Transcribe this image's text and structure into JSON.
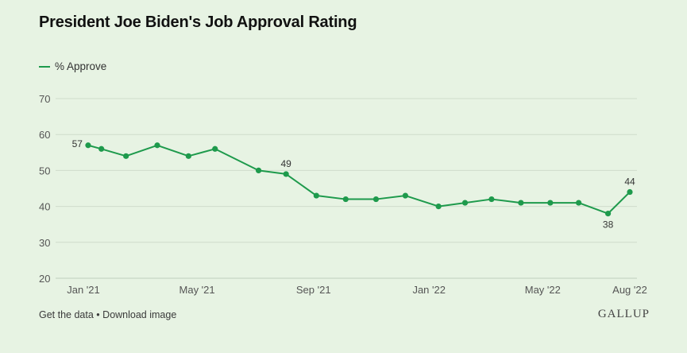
{
  "title": "President Joe Biden's Job Approval Rating",
  "legend": {
    "label": "% Approve",
    "color": "#1e9a4c"
  },
  "footer": {
    "get_data": "Get the data",
    "separator": "•",
    "download": "Download image",
    "brand": "GALLUP"
  },
  "chart_data": {
    "type": "line",
    "title": "President Joe Biden's Job Approval Rating",
    "xlabel": "",
    "ylabel": "",
    "ylim": [
      20,
      70
    ],
    "yticks": [
      20,
      30,
      40,
      50,
      60,
      70
    ],
    "xlim": [
      "2021-01-01",
      "2022-08-01"
    ],
    "xticks": [
      {
        "label": "Jan '21",
        "date": "2021-01-01"
      },
      {
        "label": "May '21",
        "date": "2021-05-01"
      },
      {
        "label": "Sep '21",
        "date": "2021-09-01"
      },
      {
        "label": "Jan '22",
        "date": "2022-01-01"
      },
      {
        "label": "May '22",
        "date": "2022-05-01"
      },
      {
        "label": "Aug '22",
        "date": "2022-08-01"
      }
    ],
    "grid": true,
    "legend_position": "top-left",
    "series": [
      {
        "name": "% Approve",
        "color": "#1e9a4c",
        "points": [
          {
            "date": "2021-01-06",
            "value": 57,
            "label": "57"
          },
          {
            "date": "2021-01-20",
            "value": 56
          },
          {
            "date": "2021-02-15",
            "value": 54
          },
          {
            "date": "2021-03-20",
            "value": 57
          },
          {
            "date": "2021-04-22",
            "value": 54
          },
          {
            "date": "2021-05-20",
            "value": 56
          },
          {
            "date": "2021-07-05",
            "value": 50
          },
          {
            "date": "2021-08-03",
            "value": 49,
            "label": "49"
          },
          {
            "date": "2021-09-04",
            "value": 43
          },
          {
            "date": "2021-10-05",
            "value": 42
          },
          {
            "date": "2021-11-06",
            "value": 42
          },
          {
            "date": "2021-12-07",
            "value": 43
          },
          {
            "date": "2022-01-11",
            "value": 40
          },
          {
            "date": "2022-02-08",
            "value": 41
          },
          {
            "date": "2022-03-08",
            "value": 42
          },
          {
            "date": "2022-04-08",
            "value": 41
          },
          {
            "date": "2022-05-09",
            "value": 41
          },
          {
            "date": "2022-06-08",
            "value": 41
          },
          {
            "date": "2022-07-09",
            "value": 38,
            "label": "38",
            "label_position": "below"
          },
          {
            "date": "2022-08-01",
            "value": 44,
            "label": "44"
          }
        ]
      }
    ]
  }
}
